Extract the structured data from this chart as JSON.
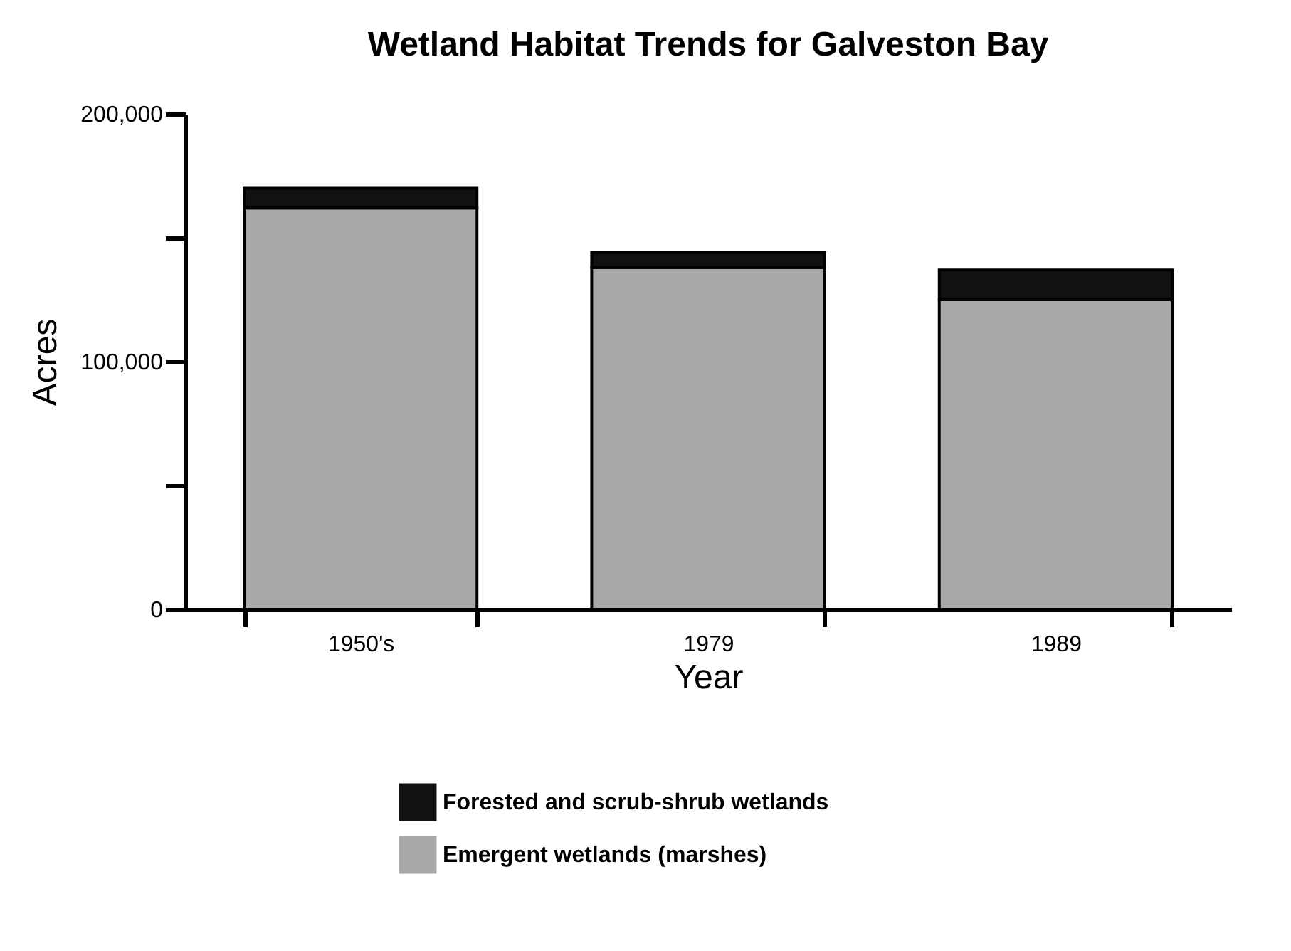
{
  "chart_data": {
    "type": "bar",
    "title": "Wetland Habitat Trends for Galveston Bay",
    "xlabel": "Year",
    "ylabel": "Acres",
    "categories": [
      "1950's",
      "1979",
      "1989"
    ],
    "stacked": true,
    "series": [
      {
        "name": "Emergent wetlands (marshes)",
        "color": "#a9a9a9",
        "values": [
          162000,
          138000,
          125000
        ]
      },
      {
        "name": "Forested and scrub-shrub wetlands",
        "color": "#111111",
        "values": [
          8000,
          6000,
          12000
        ]
      }
    ],
    "ylim": [
      0,
      200000
    ],
    "yticks": [
      0,
      {
        "value": 50000,
        "label": null
      },
      {
        "value": 100000,
        "label": "100,000"
      },
      {
        "value": 150000,
        "label": null
      },
      {
        "value": 200000,
        "label": "200,000"
      }
    ],
    "grid": false,
    "legend": "bottom"
  }
}
